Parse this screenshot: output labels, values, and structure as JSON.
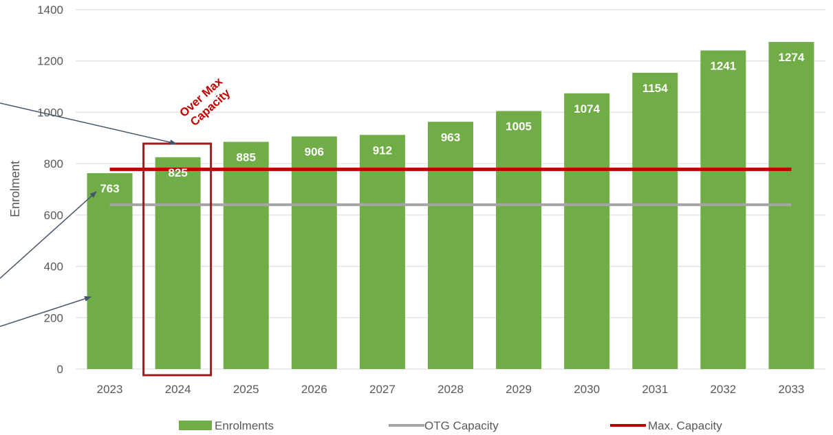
{
  "chart_data": {
    "type": "bar",
    "categories": [
      "2023",
      "2024",
      "2025",
      "2026",
      "2027",
      "2028",
      "2029",
      "2030",
      "2031",
      "2032",
      "2033"
    ],
    "series": [
      {
        "name": "Enrolments",
        "type": "bar",
        "values": [
          763,
          825,
          885,
          906,
          912,
          963,
          1005,
          1074,
          1154,
          1241,
          1274
        ]
      },
      {
        "name": "OTG Capacity",
        "type": "line",
        "values": [
          640,
          640,
          640,
          640,
          640,
          640,
          640,
          640,
          640,
          640,
          640
        ]
      },
      {
        "name": "Max. Capacity",
        "type": "line",
        "values": [
          778,
          778,
          778,
          778,
          778,
          778,
          778,
          778,
          778,
          778,
          778
        ]
      }
    ],
    "ylabel": "Enrolment",
    "xlabel": "",
    "ylim": [
      0,
      1400
    ],
    "yticks": [
      "0",
      "200",
      "400",
      "600",
      "800",
      "1000",
      "1200",
      "1400"
    ],
    "grid": true,
    "legend": "bottom",
    "annotation": {
      "text": "Over Max Capacity",
      "line1": "Over Max",
      "line2": "Capacity",
      "highlight_category": "2024"
    },
    "colors": {
      "bar": "#70ad47",
      "otg": "#a5a5a5",
      "max": "#c00000",
      "grid": "#d9d9d9",
      "arrow": "#44546a"
    }
  }
}
